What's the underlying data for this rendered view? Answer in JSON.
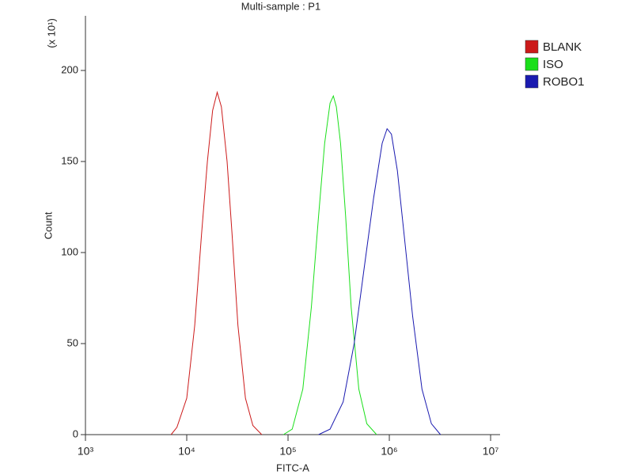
{
  "chart_data": {
    "type": "line",
    "title": "Multi-sample : P1",
    "x_label": "FITC-A",
    "y_label": "Count",
    "y_multiplier": "(x 10¹)",
    "xscale": "log",
    "xlim": [
      1000,
      12400000
    ],
    "xticks": [
      {
        "value": 1000,
        "label": "10³"
      },
      {
        "value": 10000,
        "label": "10⁴"
      },
      {
        "value": 100000,
        "label": "10⁵"
      },
      {
        "value": 1000000,
        "label": "10⁶"
      },
      {
        "value": 10000000,
        "label": "10⁷"
      }
    ],
    "ylim": [
      0,
      230
    ],
    "yticks": [
      0,
      50,
      100,
      150,
      200
    ],
    "legend": "top-right",
    "series": [
      {
        "name": "BLANK",
        "color": "#cc1a1a",
        "x": [
          7000,
          8000,
          10000,
          12000,
          14000,
          16000,
          18000,
          20000,
          22000,
          25000,
          28000,
          32000,
          38000,
          45000,
          55000
        ],
        "values": [
          0,
          4,
          20,
          60,
          110,
          150,
          178,
          188,
          180,
          150,
          110,
          60,
          20,
          5,
          0
        ]
      },
      {
        "name": "ISO",
        "color": "#1adf1a",
        "x": [
          90000,
          110000,
          140000,
          170000,
          200000,
          230000,
          260000,
          280000,
          300000,
          330000,
          370000,
          420000,
          500000,
          600000,
          750000
        ],
        "values": [
          0,
          3,
          25,
          70,
          120,
          160,
          182,
          186,
          180,
          160,
          120,
          70,
          25,
          6,
          0
        ]
      },
      {
        "name": "ROBO1",
        "color": "#1a1ab0",
        "x": [
          200000,
          260000,
          350000,
          450000,
          560000,
          700000,
          850000,
          950000,
          1050000,
          1200000,
          1400000,
          1700000,
          2100000,
          2600000,
          3200000
        ],
        "values": [
          0,
          3,
          18,
          50,
          90,
          130,
          160,
          168,
          165,
          145,
          110,
          65,
          25,
          6,
          0
        ]
      }
    ]
  }
}
